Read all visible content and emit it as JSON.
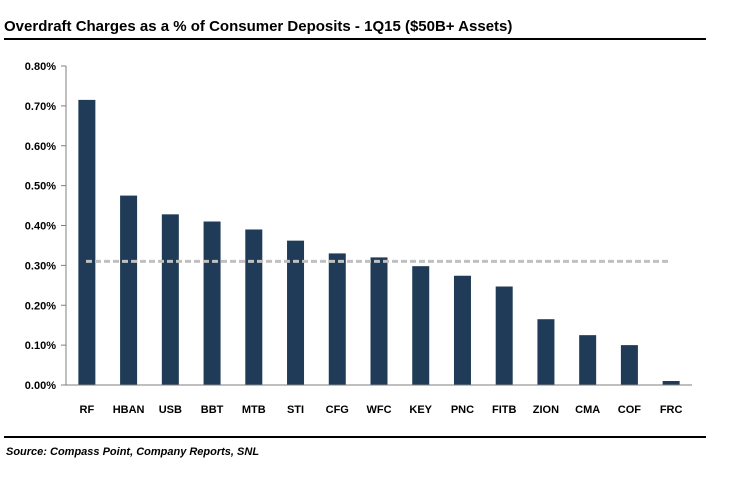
{
  "title": "Overdraft Charges as a % of Consumer Deposits - 1Q15 ($50B+ Assets)",
  "source": "Source: Compass Point, Company Reports, SNL",
  "chart_data": {
    "type": "bar",
    "title": "Overdraft Charges as a % of Consumer Deposits - 1Q15 ($50B+ Assets)",
    "xlabel": "",
    "ylabel": "",
    "categories": [
      "RF",
      "HBAN",
      "USB",
      "BBT",
      "MTB",
      "STI",
      "CFG",
      "WFC",
      "KEY",
      "PNC",
      "FITB",
      "ZION",
      "CMA",
      "COF",
      "FRC"
    ],
    "values": [
      0.715,
      0.475,
      0.428,
      0.41,
      0.39,
      0.362,
      0.33,
      0.32,
      0.298,
      0.274,
      0.247,
      0.165,
      0.125,
      0.1,
      0.01
    ],
    "ylim": [
      0,
      0.8
    ],
    "yticks": [
      0,
      0.1,
      0.2,
      0.3,
      0.4,
      0.5,
      0.6,
      0.7,
      0.8
    ],
    "ytick_labels": [
      "0.00%",
      "0.10%",
      "0.20%",
      "0.30%",
      "0.40%",
      "0.50%",
      "0.60%",
      "0.70%",
      "0.80%"
    ],
    "reference_line": 0.31,
    "grid": false,
    "legend": "none",
    "bar_color": "#1f3b57",
    "reference_line_color": "#c0c0c0",
    "axis_color": "#7f7f7f"
  }
}
